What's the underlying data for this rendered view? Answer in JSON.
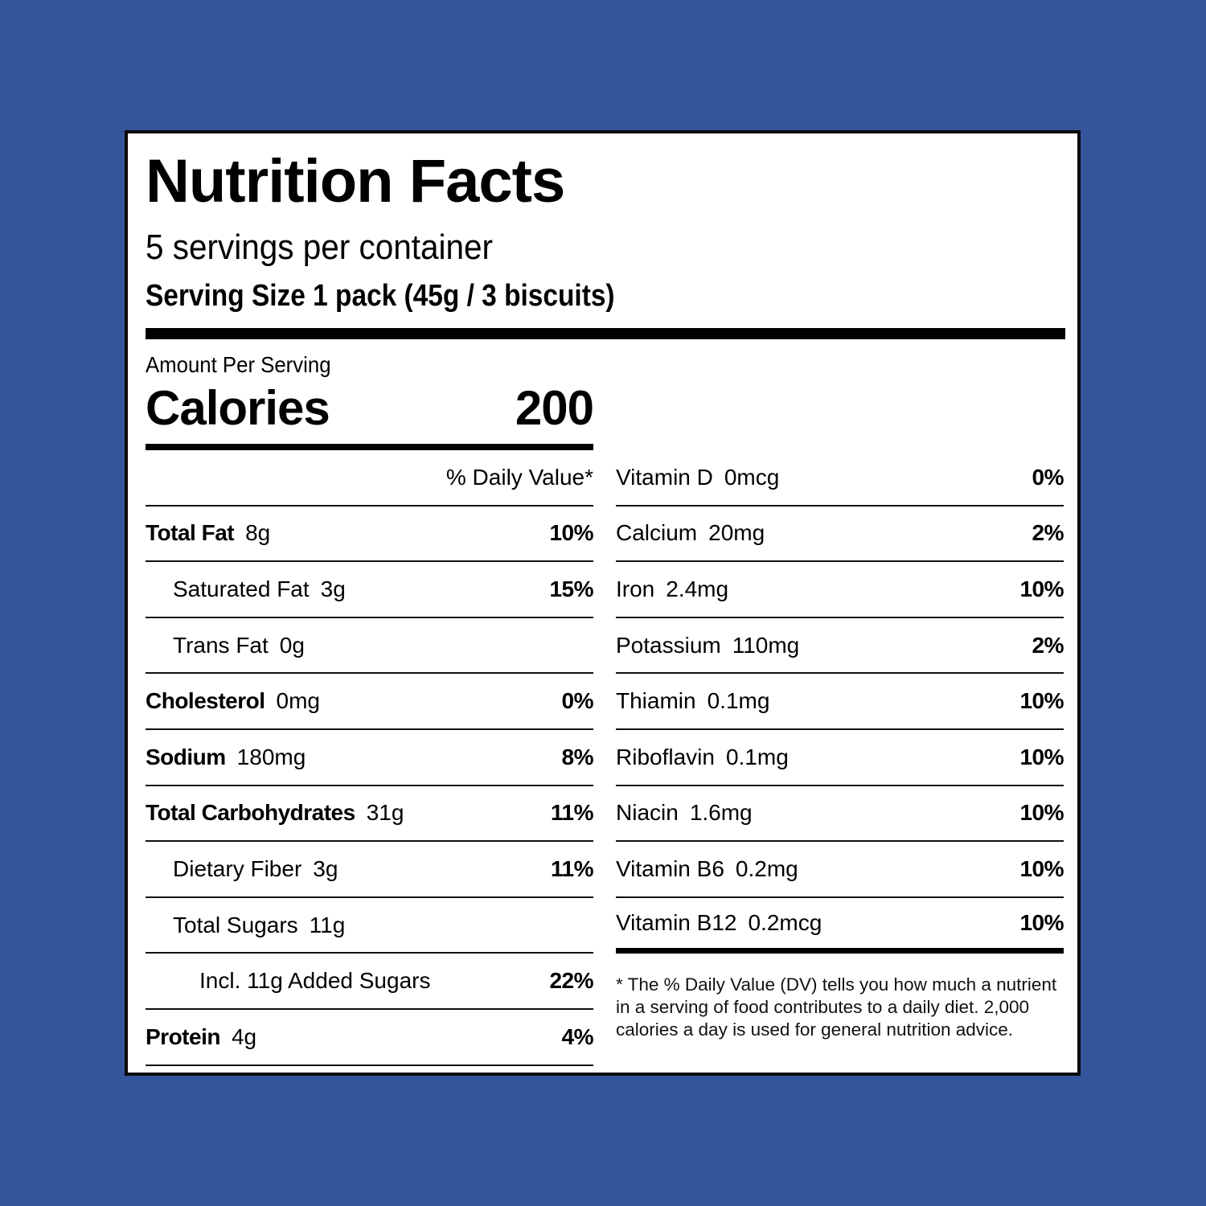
{
  "colors": {
    "background": "#34559b",
    "panel": "#ffffff",
    "text": "#000000",
    "border": "#0a0a0a"
  },
  "label": {
    "title": "Nutrition Facts",
    "servings_per_container": "5 servings per container",
    "serving_size": "Serving Size 1 pack (45g / 3 biscuits)",
    "amount_per_serving": "Amount Per Serving",
    "calories_label": "Calories",
    "calories_value": "200",
    "daily_value_header": "% Daily Value*"
  },
  "left_nutrients": [
    {
      "name": "Total Fat",
      "amount": "8g",
      "dv": "10%",
      "bold": true,
      "indent": 0
    },
    {
      "name": "Saturated Fat",
      "amount": "3g",
      "dv": "15%",
      "bold": false,
      "indent": 1
    },
    {
      "name": "Trans Fat",
      "amount": "0g",
      "dv": "",
      "bold": false,
      "indent": 1
    },
    {
      "name": "Cholesterol",
      "amount": "0mg",
      "dv": "0%",
      "bold": true,
      "indent": 0
    },
    {
      "name": "Sodium",
      "amount": "180mg",
      "dv": "8%",
      "bold": true,
      "indent": 0
    },
    {
      "name": "Total Carbohydrates",
      "amount": "31g",
      "dv": "11%",
      "bold": true,
      "indent": 0
    },
    {
      "name": "Dietary Fiber",
      "amount": "3g",
      "dv": "11%",
      "bold": false,
      "indent": 1
    },
    {
      "name": "Total Sugars",
      "amount": "11g",
      "dv": "",
      "bold": false,
      "indent": 1
    },
    {
      "name": "Incl. 11g Added Sugars",
      "amount": "",
      "dv": "22%",
      "bold": false,
      "indent": 2
    },
    {
      "name": "Protein",
      "amount": "4g",
      "dv": "4%",
      "bold": true,
      "indent": 0
    }
  ],
  "right_nutrients": [
    {
      "name": "Vitamin D",
      "amount": "0mcg",
      "dv": "0%"
    },
    {
      "name": "Calcium",
      "amount": "20mg",
      "dv": "2%"
    },
    {
      "name": "Iron",
      "amount": "2.4mg",
      "dv": "10%"
    },
    {
      "name": "Potassium",
      "amount": "110mg",
      "dv": "2%"
    },
    {
      "name": "Thiamin",
      "amount": "0.1mg",
      "dv": "10%"
    },
    {
      "name": "Riboflavin",
      "amount": "0.1mg",
      "dv": "10%"
    },
    {
      "name": "Niacin",
      "amount": "1.6mg",
      "dv": "10%"
    },
    {
      "name": "Vitamin B6",
      "amount": "0.2mg",
      "dv": "10%"
    },
    {
      "name": "Vitamin B12",
      "amount": "0.2mcg",
      "dv": "10%"
    }
  ],
  "footnote": "* The % Daily Value (DV) tells you how much a nutrient in a serving of food contributes to a daily diet. 2,000 calories a day is used for general nutrition advice."
}
